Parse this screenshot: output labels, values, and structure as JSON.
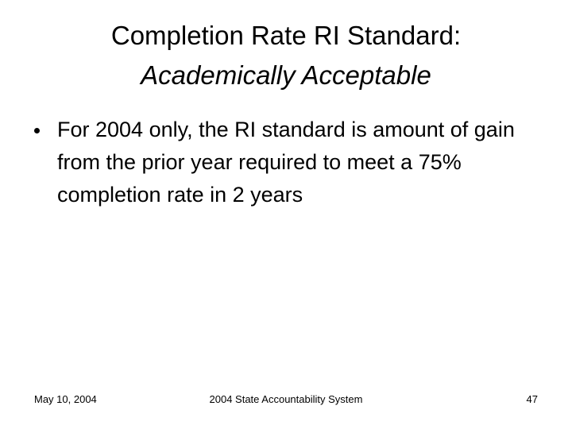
{
  "slide": {
    "title": "Completion Rate RI Standard:",
    "subtitle": "Academically Acceptable",
    "bullets": [
      "For 2004 only, the RI standard is amount of gain from the prior year required to meet a 75% completion rate in 2 years"
    ],
    "footer": {
      "date": "May 10, 2004",
      "center": "2004 State Accountability System",
      "page": "47"
    }
  }
}
